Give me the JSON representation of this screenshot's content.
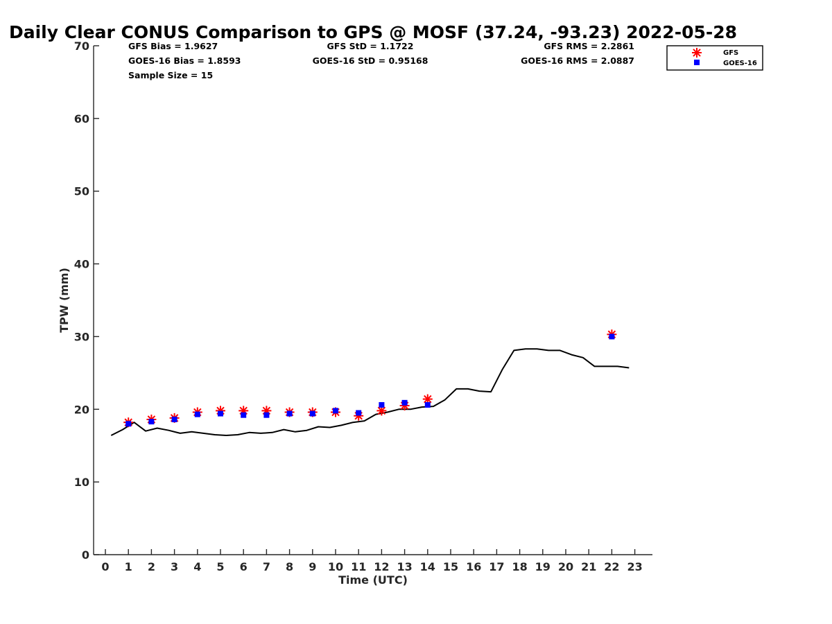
{
  "chart_data": {
    "type": "scatter",
    "title": "Daily Clear CONUS Comparison to GPS @ MOSF (37.24, -93.23) 2022-05-28",
    "xlabel": "Time (UTC)",
    "ylabel": "TPW (mm)",
    "xlim": [
      -0.5,
      24
    ],
    "ylim": [
      0,
      70
    ],
    "xticks": [
      0,
      1,
      2,
      3,
      4,
      5,
      6,
      7,
      8,
      9,
      10,
      11,
      12,
      13,
      14,
      15,
      16,
      17,
      18,
      19,
      20,
      21,
      22,
      23
    ],
    "yticks": [
      0,
      10,
      20,
      30,
      40,
      50,
      60,
      70
    ],
    "grid": false,
    "legend_position": "top-right",
    "stats": {
      "gfs_bias": "GFS Bias = 1.9627",
      "goes_bias": "GOES-16 Bias = 1.8593",
      "sample_size": "Sample Size = 15",
      "gfs_std": "GFS StD = 1.1722",
      "goes_std": "GOES-16 StD = 0.95168",
      "gfs_rms": "GFS RMS = 2.2861",
      "goes_rms": "GOES-16 RMS = 2.0887"
    },
    "series": [
      {
        "name": "GFS",
        "marker": "asterisk",
        "color": "#ff0000",
        "x": [
          1,
          2,
          3,
          4,
          5,
          6,
          7,
          8,
          9,
          10,
          11,
          12,
          13,
          14,
          22
        ],
        "y": [
          18.2,
          18.6,
          18.8,
          19.6,
          19.8,
          19.8,
          19.8,
          19.6,
          19.6,
          19.6,
          19.1,
          19.8,
          20.5,
          21.4,
          30.3
        ]
      },
      {
        "name": "GOES-16",
        "marker": "square",
        "color": "#0000ff",
        "x": [
          1,
          2,
          3,
          4,
          5,
          6,
          7,
          8,
          9,
          10,
          11,
          12,
          13,
          14,
          22
        ],
        "y": [
          18.0,
          18.3,
          18.6,
          19.3,
          19.4,
          19.2,
          19.2,
          19.4,
          19.4,
          19.8,
          19.5,
          20.6,
          20.9,
          20.6,
          30.0
        ]
      },
      {
        "name": "GPS",
        "marker": "line",
        "color": "#000000",
        "x": [
          0.25,
          0.75,
          1.25,
          1.75,
          2.25,
          2.75,
          3.25,
          3.75,
          4.25,
          4.75,
          5.25,
          5.75,
          6.25,
          6.75,
          7.25,
          7.75,
          8.25,
          8.75,
          9.25,
          9.75,
          10.25,
          10.75,
          11.25,
          11.75,
          12.25,
          12.75,
          13.25,
          13.75,
          14.25,
          14.75,
          15.25,
          15.75,
          16.25,
          16.75,
          17.25,
          17.75,
          18.25,
          18.75,
          19.25,
          19.75,
          20.25,
          20.75,
          21.25,
          21.75,
          22.25,
          22.75
        ],
        "y": [
          16.4,
          17.2,
          18.2,
          17.0,
          17.4,
          17.1,
          16.7,
          16.9,
          16.7,
          16.5,
          16.4,
          16.5,
          16.8,
          16.7,
          16.8,
          17.2,
          16.9,
          17.1,
          17.6,
          17.5,
          17.8,
          18.2,
          18.4,
          19.3,
          19.6,
          20.0,
          20.0,
          20.3,
          20.4,
          21.3,
          22.8,
          22.8,
          22.5,
          22.4,
          25.5,
          28.1,
          28.3,
          28.3,
          28.1,
          28.1,
          27.5,
          27.1,
          25.9,
          25.9,
          25.9,
          25.7
        ]
      }
    ]
  }
}
